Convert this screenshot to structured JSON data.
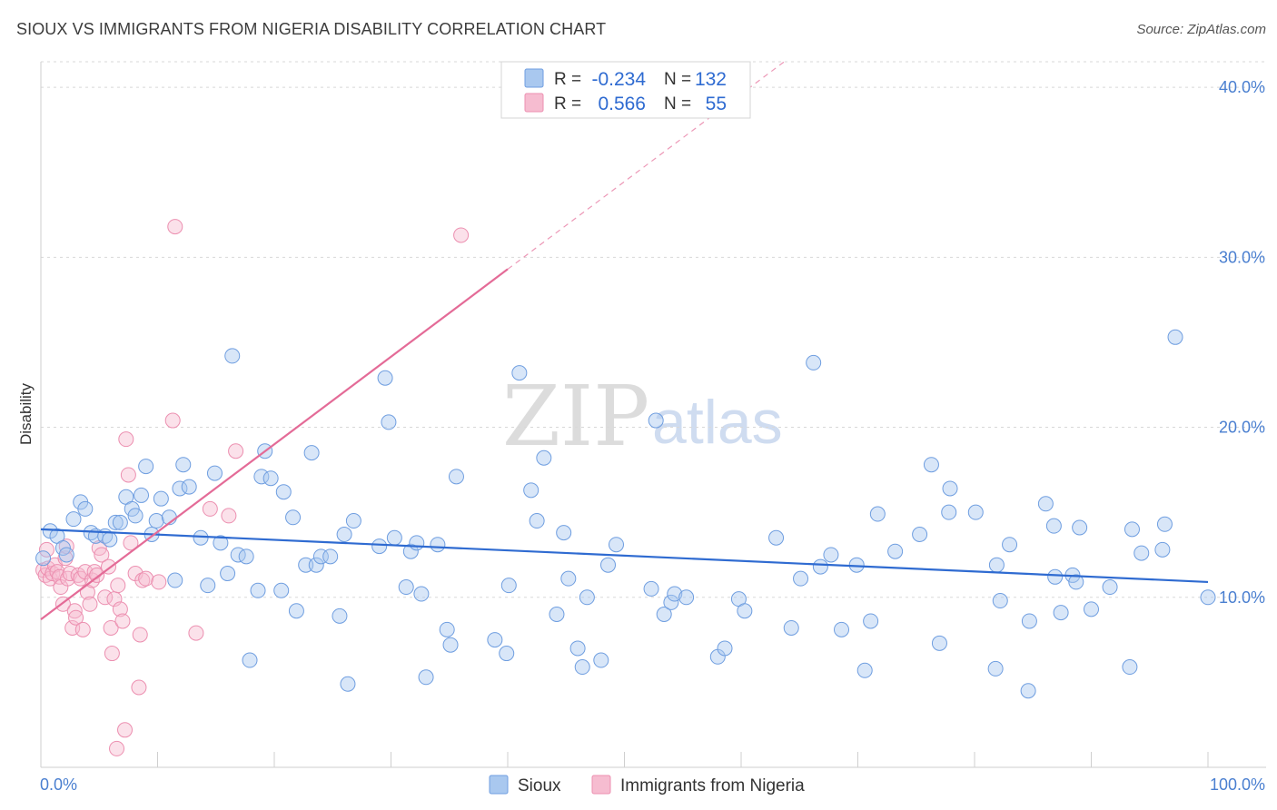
{
  "header": {
    "title": "SIOUX VS IMMIGRANTS FROM NIGERIA DISABILITY CORRELATION CHART",
    "source": "Source: ZipAtlas.com"
  },
  "watermark": {
    "part1": "ZIP",
    "part2": "atlas"
  },
  "colors": {
    "blue_fill": "#a9c8ef",
    "blue_stroke": "#6f9ee0",
    "blue_line": "#2f6bd1",
    "pink_fill": "#f6bcd0",
    "pink_stroke": "#ec8fb0",
    "pink_line": "#e46b97",
    "grid": "#d8d8d8",
    "tick_label": "#4a7fd0"
  },
  "legend_box": {
    "rows": [
      {
        "r_label": "R =",
        "r_value": "-0.234",
        "n_label": "N =",
        "n_value": "132"
      },
      {
        "r_label": "R =",
        "r_value": "0.566",
        "n_label": "N =",
        "n_value": "55"
      }
    ]
  },
  "bottom_legend": {
    "series1": "Sioux",
    "series2": "Immigrants from Nigeria"
  },
  "chart_data": {
    "type": "scatter",
    "title": "SIOUX VS IMMIGRANTS FROM NIGERIA DISABILITY CORRELATION CHART",
    "xlabel": "",
    "ylabel": "Disability",
    "x_tick_labels": [
      "0.0%",
      "100.0%"
    ],
    "y_tick_labels": [
      "10.0%",
      "20.0%",
      "30.0%",
      "40.0%"
    ],
    "y_ticks": [
      10,
      20,
      30,
      40
    ],
    "xlim": [
      0,
      100
    ],
    "ylim": [
      0,
      41.5
    ],
    "grid": true,
    "series": [
      {
        "name": "Sioux",
        "R": -0.234,
        "N": 132,
        "trend": {
          "x0": 0,
          "y0": 14.0,
          "x1": 100,
          "y1": 10.9
        },
        "points": [
          [
            0.8,
            13.9
          ],
          [
            1.4,
            13.6
          ],
          [
            1.9,
            12.9
          ],
          [
            2.2,
            12.5
          ],
          [
            2.8,
            14.6
          ],
          [
            3.4,
            15.6
          ],
          [
            3.8,
            15.2
          ],
          [
            4.3,
            13.8
          ],
          [
            4.7,
            13.6
          ],
          [
            5.5,
            13.6
          ],
          [
            5.9,
            13.4
          ],
          [
            6.4,
            14.4
          ],
          [
            6.8,
            14.4
          ],
          [
            7.3,
            15.9
          ],
          [
            7.8,
            15.2
          ],
          [
            8.1,
            14.8
          ],
          [
            8.6,
            16.0
          ],
          [
            9.0,
            17.7
          ],
          [
            9.5,
            13.7
          ],
          [
            9.9,
            14.5
          ],
          [
            10.3,
            15.8
          ],
          [
            11.0,
            14.7
          ],
          [
            11.5,
            11.0
          ],
          [
            11.9,
            16.4
          ],
          [
            12.2,
            17.8
          ],
          [
            12.7,
            16.5
          ],
          [
            13.7,
            13.5
          ],
          [
            14.3,
            10.7
          ],
          [
            14.9,
            17.3
          ],
          [
            15.4,
            13.2
          ],
          [
            16.0,
            11.4
          ],
          [
            16.4,
            24.2
          ],
          [
            16.9,
            12.5
          ],
          [
            17.6,
            12.4
          ],
          [
            17.9,
            6.3
          ],
          [
            18.6,
            10.4
          ],
          [
            18.9,
            17.1
          ],
          [
            19.2,
            18.6
          ],
          [
            19.7,
            17.0
          ],
          [
            20.6,
            10.4
          ],
          [
            20.8,
            16.2
          ],
          [
            21.6,
            14.7
          ],
          [
            21.9,
            9.2
          ],
          [
            22.7,
            11.9
          ],
          [
            23.2,
            18.5
          ],
          [
            23.6,
            11.9
          ],
          [
            24.0,
            12.4
          ],
          [
            24.8,
            12.4
          ],
          [
            25.6,
            8.9
          ],
          [
            26.0,
            13.7
          ],
          [
            26.3,
            4.9
          ],
          [
            26.8,
            14.5
          ],
          [
            29.0,
            13.0
          ],
          [
            29.5,
            22.9
          ],
          [
            29.8,
            20.3
          ],
          [
            30.3,
            13.5
          ],
          [
            31.3,
            10.6
          ],
          [
            31.7,
            12.7
          ],
          [
            32.2,
            13.2
          ],
          [
            32.6,
            10.2
          ],
          [
            33.0,
            5.3
          ],
          [
            34.0,
            13.1
          ],
          [
            34.8,
            8.1
          ],
          [
            35.1,
            7.2
          ],
          [
            35.6,
            17.1
          ],
          [
            38.9,
            7.5
          ],
          [
            39.9,
            6.7
          ],
          [
            40.1,
            10.7
          ],
          [
            41.0,
            23.2
          ],
          [
            42.0,
            16.3
          ],
          [
            42.5,
            14.5
          ],
          [
            43.1,
            18.2
          ],
          [
            44.2,
            9.0
          ],
          [
            44.8,
            13.8
          ],
          [
            45.2,
            11.1
          ],
          [
            46.0,
            7.0
          ],
          [
            46.4,
            5.9
          ],
          [
            46.8,
            10.0
          ],
          [
            48.0,
            6.3
          ],
          [
            48.6,
            11.9
          ],
          [
            49.3,
            13.1
          ],
          [
            52.3,
            10.5
          ],
          [
            52.7,
            20.4
          ],
          [
            53.4,
            9.0
          ],
          [
            54.0,
            9.7
          ],
          [
            54.3,
            10.2
          ],
          [
            55.3,
            10.0
          ],
          [
            58.0,
            6.5
          ],
          [
            58.6,
            7.0
          ],
          [
            59.8,
            9.9
          ],
          [
            60.3,
            9.2
          ],
          [
            63.0,
            13.5
          ],
          [
            64.3,
            8.2
          ],
          [
            65.1,
            11.1
          ],
          [
            66.2,
            23.8
          ],
          [
            66.8,
            11.8
          ],
          [
            67.7,
            12.5
          ],
          [
            68.6,
            8.1
          ],
          [
            69.9,
            11.9
          ],
          [
            70.6,
            5.7
          ],
          [
            71.1,
            8.6
          ],
          [
            71.7,
            14.9
          ],
          [
            73.2,
            12.7
          ],
          [
            75.3,
            13.7
          ],
          [
            76.3,
            17.8
          ],
          [
            77.0,
            7.3
          ],
          [
            77.8,
            15.0
          ],
          [
            77.9,
            16.4
          ],
          [
            80.1,
            15.0
          ],
          [
            81.8,
            5.8
          ],
          [
            81.9,
            11.9
          ],
          [
            82.2,
            9.8
          ],
          [
            83.0,
            13.1
          ],
          [
            84.6,
            4.5
          ],
          [
            84.7,
            8.6
          ],
          [
            86.1,
            15.5
          ],
          [
            86.8,
            14.2
          ],
          [
            86.9,
            11.2
          ],
          [
            87.4,
            9.1
          ],
          [
            88.4,
            11.3
          ],
          [
            88.7,
            10.9
          ],
          [
            89.0,
            14.1
          ],
          [
            90.0,
            9.3
          ],
          [
            91.6,
            10.6
          ],
          [
            93.3,
            5.9
          ],
          [
            93.5,
            14.0
          ],
          [
            94.3,
            12.6
          ],
          [
            96.1,
            12.8
          ],
          [
            96.3,
            14.3
          ],
          [
            97.2,
            25.3
          ],
          [
            100.0,
            10.0
          ],
          [
            0.2,
            12.3
          ]
        ]
      },
      {
        "name": "Immigrants from Nigeria",
        "R": 0.566,
        "N": 55,
        "trend": {
          "x0": 0,
          "y0": 8.7,
          "x1": 40,
          "y1": 29.3,
          "dashed_to_x": 100
        },
        "points": [
          [
            0.2,
            11.6
          ],
          [
            0.4,
            11.3
          ],
          [
            0.6,
            11.7
          ],
          [
            0.8,
            11.1
          ],
          [
            1.0,
            11.4
          ],
          [
            1.2,
            11.9
          ],
          [
            1.4,
            11.5
          ],
          [
            1.6,
            11.2
          ],
          [
            1.7,
            10.6
          ],
          [
            1.9,
            9.6
          ],
          [
            2.1,
            12.3
          ],
          [
            2.3,
            11.1
          ],
          [
            2.5,
            11.4
          ],
          [
            2.7,
            8.2
          ],
          [
            2.9,
            9.2
          ],
          [
            3.0,
            8.8
          ],
          [
            3.2,
            11.3
          ],
          [
            3.4,
            11.1
          ],
          [
            3.6,
            8.1
          ],
          [
            3.8,
            11.5
          ],
          [
            4.0,
            10.3
          ],
          [
            4.2,
            9.6
          ],
          [
            4.4,
            11.0
          ],
          [
            4.6,
            11.5
          ],
          [
            4.8,
            11.3
          ],
          [
            5.0,
            12.9
          ],
          [
            5.2,
            12.5
          ],
          [
            5.5,
            10.0
          ],
          [
            5.8,
            11.8
          ],
          [
            6.0,
            8.2
          ],
          [
            6.1,
            6.7
          ],
          [
            6.3,
            9.9
          ],
          [
            6.5,
            1.1
          ],
          [
            6.6,
            10.7
          ],
          [
            6.8,
            9.3
          ],
          [
            7.0,
            8.6
          ],
          [
            7.2,
            2.2
          ],
          [
            7.3,
            19.3
          ],
          [
            7.5,
            17.2
          ],
          [
            7.7,
            13.2
          ],
          [
            8.1,
            11.4
          ],
          [
            8.4,
            4.7
          ],
          [
            8.5,
            7.8
          ],
          [
            8.7,
            11.0
          ],
          [
            9.0,
            11.1
          ],
          [
            10.1,
            10.9
          ],
          [
            11.3,
            20.4
          ],
          [
            11.5,
            31.8
          ],
          [
            13.3,
            7.9
          ],
          [
            14.5,
            15.2
          ],
          [
            16.1,
            14.8
          ],
          [
            16.7,
            18.6
          ],
          [
            36.0,
            31.3
          ],
          [
            2.2,
            13.0
          ],
          [
            0.5,
            12.8
          ]
        ]
      }
    ]
  }
}
